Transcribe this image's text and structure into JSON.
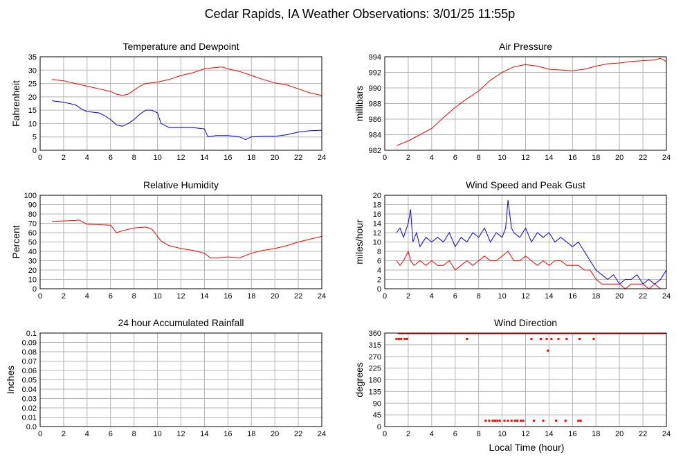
{
  "page_title": "Cedar Rapids, IA Weather Observations: 3/01/25 11:55p",
  "bottom_xlabel": "Local Time (hour)",
  "chart_data": [
    {
      "id": "temp",
      "type": "line",
      "title": "Temperature and Dewpoint",
      "ylabel": "Fahrenheit",
      "xlabel": "",
      "xlim": [
        0,
        24
      ],
      "ylim": [
        0,
        35
      ],
      "xticks": [
        0,
        2,
        4,
        6,
        8,
        10,
        12,
        14,
        16,
        18,
        20,
        22,
        24
      ],
      "xtick_labels": [
        "0",
        "2",
        "4",
        "6",
        "8",
        "10",
        "12",
        "14",
        "16",
        "18",
        "20",
        "22",
        "24"
      ],
      "yticks": [
        0,
        5,
        10,
        15,
        20,
        25,
        30,
        35
      ],
      "ytick_labels": [
        "0",
        "5",
        "10",
        "15",
        "20",
        "25",
        "30",
        "35"
      ],
      "grid": true,
      "series": [
        {
          "color": "#ff0000",
          "x": [
            1,
            2,
            3,
            4,
            5,
            6,
            6.5,
            7,
            7.5,
            8,
            8.5,
            9,
            10,
            11,
            12,
            13,
            14,
            15,
            15.5,
            16,
            17,
            18,
            19,
            20,
            21,
            22,
            23,
            24
          ],
          "y": [
            26.5,
            26,
            25,
            24,
            23,
            22,
            21,
            20.5,
            21,
            22.5,
            24,
            25,
            25.5,
            26.5,
            28,
            29,
            30.5,
            31,
            31.2,
            30.5,
            29.5,
            28,
            26.5,
            25.2,
            24.5,
            23,
            21.5,
            20.5
          ]
        },
        {
          "color": "#0000ff",
          "x": [
            1,
            2,
            3,
            3.5,
            4,
            5,
            5.5,
            6,
            6.5,
            7,
            7.5,
            8,
            8.5,
            9,
            9.5,
            10,
            10.3,
            11,
            12,
            13,
            14,
            14.3,
            15,
            16,
            17,
            17.5,
            18,
            19,
            20,
            21,
            22,
            23,
            24
          ],
          "y": [
            18.5,
            18,
            17,
            15.5,
            14.5,
            14,
            13,
            11.5,
            9.5,
            9,
            10,
            11.5,
            13.5,
            15,
            15,
            14,
            10,
            8.5,
            8.5,
            8.5,
            8,
            5,
            5.5,
            5.5,
            5,
            4,
            5,
            5.2,
            5.2,
            5.8,
            6.8,
            7.3,
            7.5
          ]
        }
      ]
    },
    {
      "id": "pres",
      "type": "line",
      "title": "Air Pressure",
      "ylabel": "millibars",
      "xlabel": "",
      "xlim": [
        0,
        24
      ],
      "ylim": [
        982,
        994
      ],
      "xticks": [
        0,
        2,
        4,
        6,
        8,
        10,
        12,
        14,
        16,
        18,
        20,
        22,
        24
      ],
      "xtick_labels": [
        "0",
        "2",
        "4",
        "6",
        "8",
        "10",
        "12",
        "14",
        "16",
        "18",
        "20",
        "22",
        "24"
      ],
      "yticks": [
        982,
        984,
        986,
        988,
        990,
        992,
        994
      ],
      "ytick_labels": [
        "982",
        "984",
        "986",
        "988",
        "990",
        "992",
        "994"
      ],
      "grid": true,
      "series": [
        {
          "color": "#ff0000",
          "x": [
            1,
            2,
            3,
            4,
            5,
            6,
            7,
            8,
            9,
            10,
            11,
            12,
            13,
            14,
            15,
            16,
            17,
            18,
            19,
            20,
            21,
            22,
            23,
            23.5,
            24
          ],
          "y": [
            982.6,
            983.2,
            984,
            984.8,
            986.2,
            987.5,
            988.6,
            989.6,
            991,
            992,
            992.7,
            993,
            992.8,
            992.4,
            992.3,
            992.2,
            992.4,
            992.8,
            993.1,
            993.2,
            993.4,
            993.5,
            993.6,
            993.8,
            993.4
          ]
        }
      ]
    },
    {
      "id": "rh",
      "type": "line",
      "title": "Relative Humidity",
      "ylabel": "Percent",
      "xlabel": "",
      "xlim": [
        0,
        24
      ],
      "ylim": [
        0,
        100
      ],
      "xticks": [
        0,
        2,
        4,
        6,
        8,
        10,
        12,
        14,
        16,
        18,
        20,
        22,
        24
      ],
      "xtick_labels": [
        "0",
        "2",
        "4",
        "6",
        "8",
        "10",
        "12",
        "14",
        "16",
        "18",
        "20",
        "22",
        "24"
      ],
      "yticks": [
        0,
        10,
        20,
        30,
        40,
        50,
        60,
        70,
        80,
        90,
        100
      ],
      "ytick_labels": [
        "0",
        "10",
        "20",
        "30",
        "40",
        "50",
        "60",
        "70",
        "80",
        "90",
        "100"
      ],
      "grid": true,
      "series": [
        {
          "color": "#ff0000",
          "x": [
            1,
            2,
            3,
            3.3,
            4,
            5,
            6,
            6.5,
            7,
            8,
            9,
            9.5,
            10,
            10.3,
            11,
            12,
            13,
            14,
            14.5,
            15,
            16,
            17,
            18,
            19,
            20,
            21,
            22,
            23,
            24
          ],
          "y": [
            72,
            72.5,
            73,
            73.5,
            69,
            68.5,
            68,
            60,
            62,
            65,
            66,
            64,
            56,
            51,
            46,
            43,
            41,
            38,
            33,
            33,
            34,
            33,
            38,
            41,
            43,
            46,
            50,
            53,
            56
          ]
        }
      ]
    },
    {
      "id": "wind",
      "type": "line",
      "title": "Wind Speed and Peak Gust",
      "ylabel": "miles/hour",
      "xlabel": "",
      "xlim": [
        0,
        24
      ],
      "ylim": [
        0,
        20
      ],
      "xticks": [
        0,
        2,
        4,
        6,
        8,
        10,
        12,
        14,
        16,
        18,
        20,
        22,
        24
      ],
      "xtick_labels": [
        "0",
        "2",
        "4",
        "6",
        "8",
        "10",
        "12",
        "14",
        "16",
        "18",
        "20",
        "22",
        "24"
      ],
      "yticks": [
        0,
        2,
        4,
        6,
        8,
        10,
        12,
        14,
        16,
        18,
        20
      ],
      "ytick_labels": [
        "0",
        "2",
        "4",
        "6",
        "8",
        "10",
        "12",
        "14",
        "16",
        "18",
        "20"
      ],
      "grid": true,
      "series": [
        {
          "color": "#0000ff",
          "x": [
            1,
            1.3,
            1.6,
            2,
            2.2,
            2.4,
            2.7,
            3,
            3.5,
            4,
            4.5,
            5,
            5.5,
            6,
            6.5,
            7,
            7.5,
            8,
            8.5,
            9,
            9.5,
            10,
            10.3,
            10.5,
            10.8,
            11,
            11.5,
            12,
            12.5,
            13,
            13.5,
            14,
            14.5,
            15,
            15.5,
            16,
            16.5,
            17,
            17.5,
            18,
            18.5,
            19,
            19.5,
            20,
            20.5,
            21,
            21.5,
            22,
            22.5,
            23,
            23.5,
            24
          ],
          "y": [
            12,
            13,
            11,
            14,
            17,
            10,
            12,
            9,
            11,
            10,
            11,
            10,
            12,
            9,
            11,
            10,
            12,
            11,
            13,
            10,
            12,
            11,
            13,
            19,
            13,
            12,
            11,
            13,
            10,
            12,
            11,
            12,
            10,
            11,
            10,
            9,
            10,
            8,
            6,
            4,
            3,
            2,
            3,
            1,
            2,
            2,
            3,
            1,
            2,
            1,
            2,
            4
          ]
        },
        {
          "color": "#ff0000",
          "x": [
            1,
            1.3,
            1.6,
            2,
            2.2,
            2.5,
            3,
            3.5,
            4,
            4.5,
            5,
            5.5,
            6,
            6.5,
            7,
            7.5,
            8,
            8.5,
            9,
            9.5,
            10,
            10.5,
            11,
            11.5,
            12,
            12.5,
            13,
            13.5,
            14,
            14.5,
            15,
            15.5,
            16,
            16.5,
            17,
            17.5,
            18,
            18.5,
            19,
            19.5,
            20,
            20.5,
            21,
            21.5,
            22,
            22.5,
            23,
            23.5,
            24
          ],
          "y": [
            6,
            5,
            6,
            8,
            6,
            5,
            6,
            5,
            6,
            5,
            5,
            6,
            4,
            5,
            6,
            5,
            6,
            7,
            6,
            6,
            7,
            8,
            6,
            6,
            7,
            6,
            5,
            6,
            5,
            6,
            6,
            5,
            5,
            5,
            4,
            4,
            2,
            1,
            1,
            1,
            1,
            0,
            1,
            1,
            1,
            0,
            1,
            0,
            0
          ]
        }
      ]
    },
    {
      "id": "rain",
      "type": "line",
      "title": "24 hour Accumulated Rainfall",
      "ylabel": "Inches",
      "xlabel": "",
      "xlim": [
        0,
        24
      ],
      "ylim": [
        0,
        0.1
      ],
      "xticks": [
        0,
        2,
        4,
        6,
        8,
        10,
        12,
        14,
        16,
        18,
        20,
        22,
        24
      ],
      "xtick_labels": [
        "0",
        "2",
        "4",
        "6",
        "8",
        "10",
        "12",
        "14",
        "16",
        "18",
        "20",
        "22",
        "24"
      ],
      "yticks": [
        0,
        0.01,
        0.02,
        0.03,
        0.04,
        0.05,
        0.06,
        0.07,
        0.08,
        0.09,
        0.1
      ],
      "ytick_labels": [
        "0.0",
        "0.01",
        "0.02",
        "0.03",
        "0.04",
        "0.05",
        "0.06",
        "0.07",
        "0.08",
        "0.09",
        "0.1"
      ],
      "grid": true,
      "series": [
        {
          "color": "#ff0000",
          "x": [
            1,
            24
          ],
          "y": [
            0,
            0
          ]
        }
      ]
    },
    {
      "id": "dir",
      "type": "scatter",
      "title": "Wind Direction",
      "ylabel": "degrees",
      "xlabel": "Local Time (hour)",
      "xlim": [
        0,
        24
      ],
      "ylim": [
        0,
        360
      ],
      "xticks": [
        0,
        2,
        4,
        6,
        8,
        10,
        12,
        14,
        16,
        18,
        20,
        22,
        24
      ],
      "xtick_labels": [
        "0",
        "2",
        "4",
        "6",
        "8",
        "10",
        "12",
        "14",
        "16",
        "18",
        "20",
        "22",
        "24"
      ],
      "yticks": [
        0,
        45,
        90,
        135,
        180,
        225,
        270,
        315,
        360
      ],
      "ytick_labels": [
        "0",
        "45",
        "90",
        "135",
        "180",
        "225",
        "270",
        "315",
        "360"
      ],
      "grid": true,
      "series": [
        {
          "color": "#ff0000",
          "x": [
            1,
            1.2,
            1.4,
            1.7,
            1.9,
            7,
            12.5,
            13.3,
            13.8,
            14.2,
            14.8,
            15.5,
            16.6,
            17.8,
            13.9,
            8.6,
            8.9,
            9.2,
            9.4,
            9.6,
            9.8,
            10.2,
            10.5,
            10.8,
            11.1,
            11.3,
            11.6,
            11.8,
            12.7,
            13.5,
            14.6,
            15.4,
            16.5,
            16.7
          ],
          "y": [
            337.5,
            337.5,
            337.5,
            337.5,
            337.5,
            337.5,
            337.5,
            337.5,
            337.5,
            337.5,
            337.5,
            337.5,
            337.5,
            337.5,
            292.5,
            22.5,
            22.5,
            22.5,
            22.5,
            22.5,
            22.5,
            22.5,
            22.5,
            22.5,
            22.5,
            22.5,
            22.5,
            22.5,
            22.5,
            22.5,
            22.5,
            22.5,
            22.5,
            22.5
          ]
        }
      ],
      "dense_band": {
        "color": "#ff0000",
        "y": 360,
        "x_range": [
          1.1,
          24
        ]
      }
    }
  ]
}
